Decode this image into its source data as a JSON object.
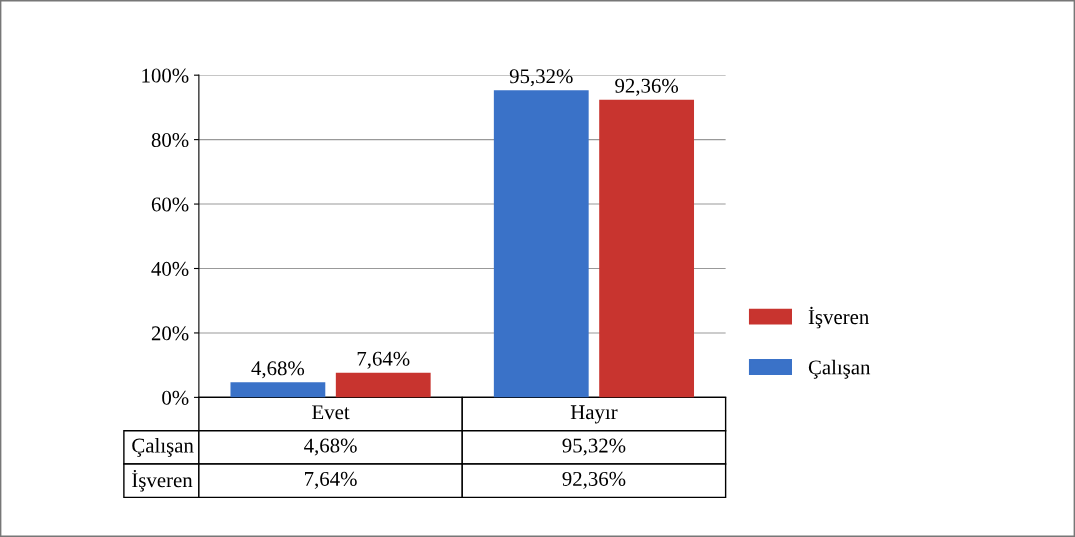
{
  "chart_data": {
    "type": "bar",
    "categories": [
      "Evet",
      "Hayır"
    ],
    "series": [
      {
        "name": "Çalışan",
        "color": "#3a72c8",
        "values": [
          4.68,
          95.32
        ],
        "value_labels": [
          "4,68%",
          "95,32%"
        ]
      },
      {
        "name": "İşveren",
        "color": "#c8342f",
        "values": [
          7.64,
          92.36
        ],
        "value_labels": [
          "7,64%",
          "92,36%"
        ]
      }
    ],
    "ylim": [
      0,
      100
    ],
    "yticks": [
      {
        "value": 0,
        "label": "0%"
      },
      {
        "value": 20,
        "label": "20%"
      },
      {
        "value": 40,
        "label": "40%"
      },
      {
        "value": 60,
        "label": "60%"
      },
      {
        "value": 80,
        "label": "80%"
      },
      {
        "value": 100,
        "label": "100%"
      }
    ],
    "grid": "y",
    "legend": "right"
  }
}
